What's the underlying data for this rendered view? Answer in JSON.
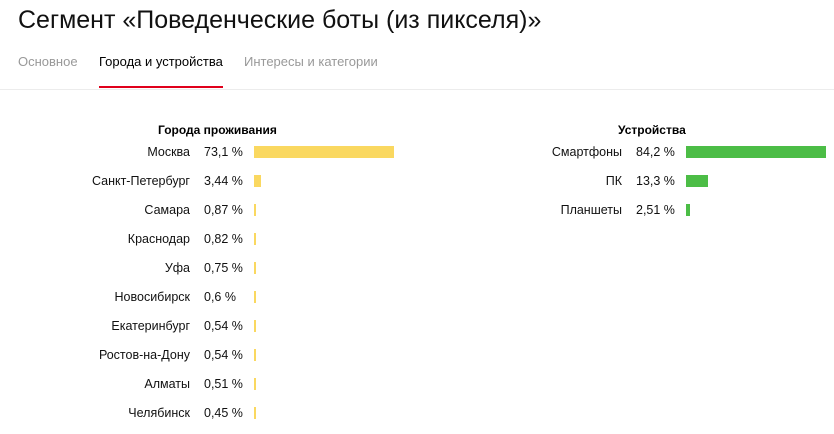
{
  "title": "Сегмент «Поведенческие боты (из пикселя)»",
  "tabs": [
    {
      "label": "Основное",
      "active": false
    },
    {
      "label": "Города и устройства",
      "active": true
    },
    {
      "label": "Интересы и категории",
      "active": false
    }
  ],
  "cities": {
    "title": "Города проживания",
    "color": "#fad860",
    "items": [
      {
        "label": "Москва",
        "pct_text": "73,1 %",
        "value": 73.1
      },
      {
        "label": "Санкт-Петербург",
        "pct_text": "3,44 %",
        "value": 3.44
      },
      {
        "label": "Самара",
        "pct_text": "0,87 %",
        "value": 0.87
      },
      {
        "label": "Краснодар",
        "pct_text": "0,82 %",
        "value": 0.82
      },
      {
        "label": "Уфа",
        "pct_text": "0,75 %",
        "value": 0.75
      },
      {
        "label": "Новосибирск",
        "pct_text": "0,6 %",
        "value": 0.6
      },
      {
        "label": "Екатеринбург",
        "pct_text": "0,54 %",
        "value": 0.54
      },
      {
        "label": "Ростов-на-Дону",
        "pct_text": "0,54 %",
        "value": 0.54
      },
      {
        "label": "Алматы",
        "pct_text": "0,51 %",
        "value": 0.51
      },
      {
        "label": "Челябинск",
        "pct_text": "0,45 %",
        "value": 0.45
      }
    ]
  },
  "devices": {
    "title": "Устройства",
    "color": "#4cbd46",
    "items": [
      {
        "label": "Смартфоны",
        "pct_text": "84,2 %",
        "value": 84.2
      },
      {
        "label": "ПК",
        "pct_text": "13,3 %",
        "value": 13.3
      },
      {
        "label": "Планшеты",
        "pct_text": "2,51 %",
        "value": 2.51
      }
    ]
  }
}
